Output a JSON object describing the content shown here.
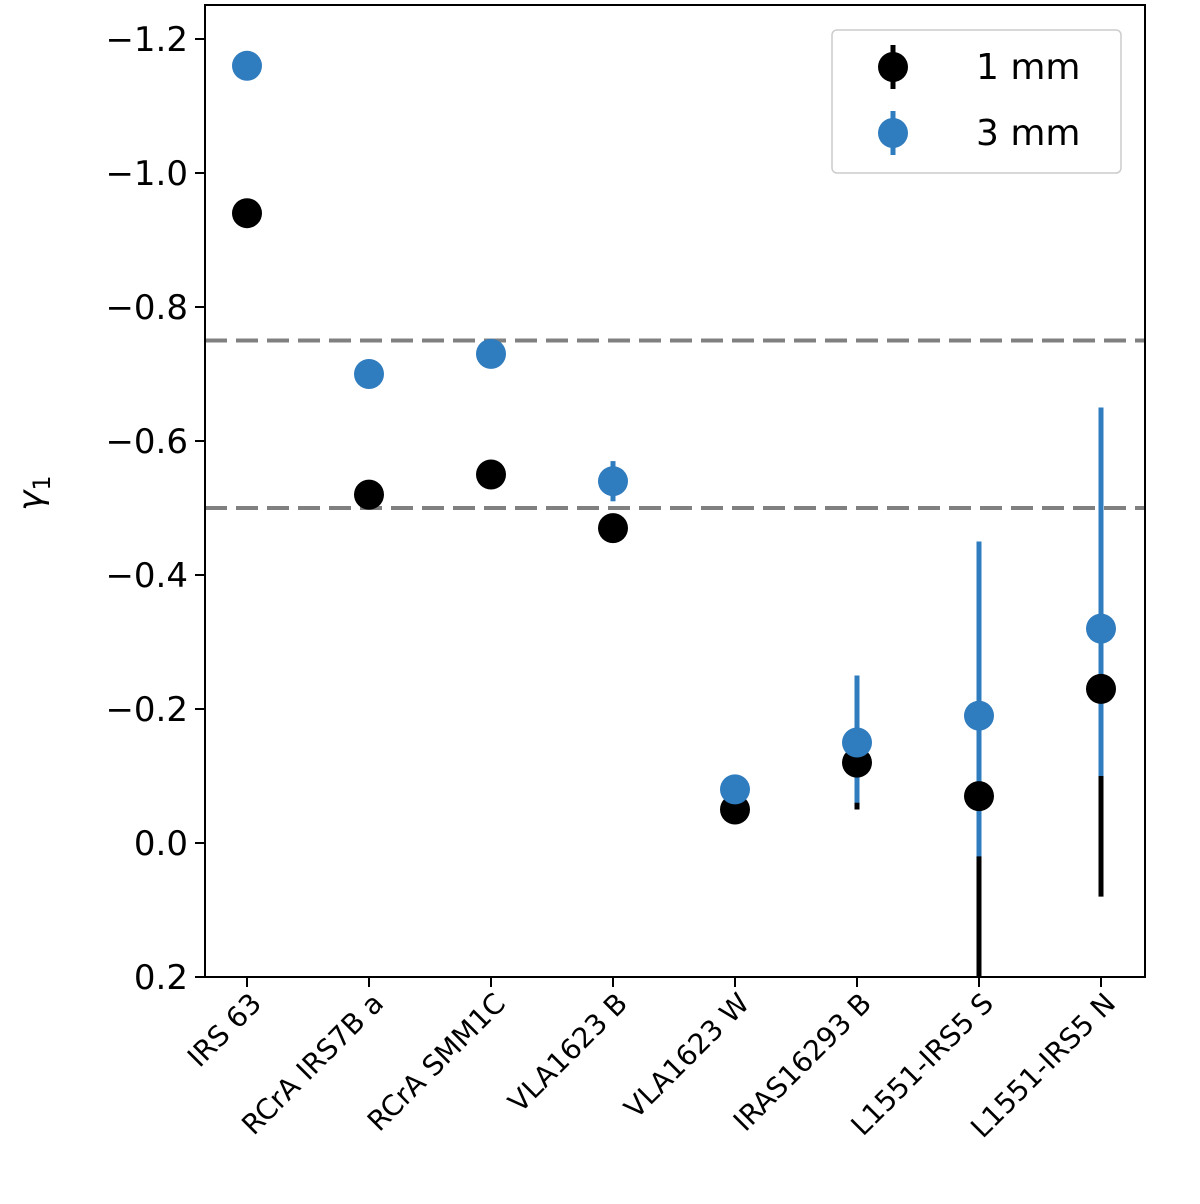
{
  "chart_data": {
    "type": "scatter",
    "title": "",
    "xlabel": "",
    "ylabel": "γ",
    "ylabel_subscript": "1",
    "ylim": [
      0.2,
      -1.25
    ],
    "yticks": [
      -1.2,
      -1.0,
      -0.8,
      -0.6,
      -0.4,
      -0.2,
      0.0,
      0.2
    ],
    "ytick_labels": [
      "−1.2",
      "−1.0",
      "−0.8",
      "−0.6",
      "−0.4",
      "−0.2",
      "0.0",
      "0.2"
    ],
    "categories": [
      "IRS 63",
      "RCrA IRS7B a",
      "RCrA SMM1C",
      "VLA1623 B",
      "VLA1623 W",
      "IRAS16293 B",
      "L1551-IRS5 S",
      "L1551-IRS5 N"
    ],
    "hlines": [
      {
        "y": -0.75,
        "style": "dashed",
        "color": "#808080"
      },
      {
        "y": -0.5,
        "style": "dashed",
        "color": "#808080"
      }
    ],
    "legend_position": "top-right",
    "series": [
      {
        "name": "1 mm",
        "color": "#000000",
        "values": [
          -0.94,
          -0.52,
          -0.55,
          -0.47,
          -0.05,
          -0.12,
          -0.07,
          -0.23
        ],
        "err_low": [
          null,
          null,
          null,
          null,
          null,
          0.12,
          0.35,
          0.31
        ],
        "err_high": [
          null,
          null,
          null,
          null,
          null,
          0.07,
          0.33,
          0.31
        ]
      },
      {
        "name": "3 mm",
        "color": "#2f7cbf",
        "values": [
          -1.16,
          -0.7,
          -0.73,
          -0.54,
          -0.08,
          -0.15,
          -0.19,
          -0.32
        ],
        "err_low": [
          null,
          null,
          null,
          0.03,
          null,
          0.1,
          0.26,
          0.33
        ],
        "err_high": [
          null,
          null,
          null,
          0.03,
          null,
          0.09,
          0.21,
          0.22
        ]
      }
    ]
  }
}
